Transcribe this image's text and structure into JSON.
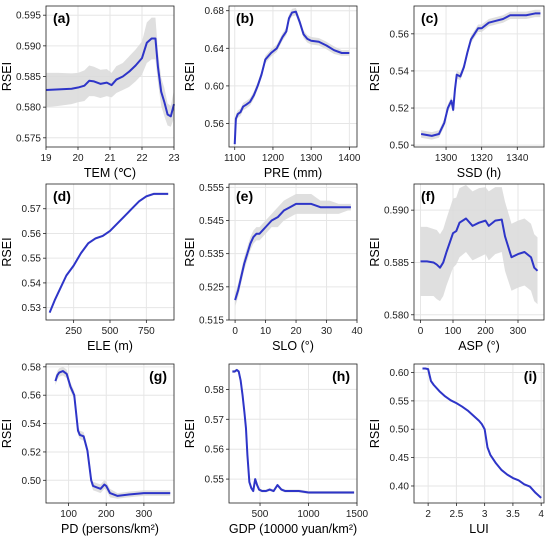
{
  "colors": {
    "line": "#2e35c8",
    "band": "#d9d9d9",
    "grid": "#e6e6e6",
    "frame": "#222222",
    "text": "#222222"
  },
  "chart_data": [
    {
      "panel": "(a)",
      "type": "line",
      "xlabel": "TEM (℃)",
      "ylabel": "RSEI",
      "xlim": [
        19,
        23
      ],
      "ylim": [
        0.5735,
        0.5965
      ],
      "xticks": [
        19,
        20,
        21,
        22,
        23
      ],
      "yticks": [
        0.575,
        0.58,
        0.585,
        0.59,
        0.595
      ],
      "ytick_labels": [
        "0.575",
        "0.580",
        "0.585",
        "0.590",
        "0.595"
      ],
      "grid": true,
      "band": true,
      "x": [
        19.0,
        19.4,
        19.8,
        20.0,
        20.2,
        20.35,
        20.5,
        20.7,
        20.9,
        21.05,
        21.2,
        21.4,
        21.6,
        21.8,
        22.0,
        22.15,
        22.3,
        22.42,
        22.5,
        22.6,
        22.7,
        22.8,
        22.9,
        23.0
      ],
      "y": [
        0.5828,
        0.5829,
        0.583,
        0.5832,
        0.5835,
        0.5843,
        0.5842,
        0.5838,
        0.584,
        0.5836,
        0.5845,
        0.585,
        0.5858,
        0.5868,
        0.588,
        0.5905,
        0.5912,
        0.5912,
        0.5865,
        0.5825,
        0.5808,
        0.5788,
        0.5785,
        0.5805
      ],
      "band_lower": [
        0.58,
        0.5802,
        0.5805,
        0.5808,
        0.581,
        0.5818,
        0.5818,
        0.5815,
        0.5818,
        0.5816,
        0.5823,
        0.5828,
        0.5833,
        0.5842,
        0.5853,
        0.5872,
        0.5878,
        0.5878,
        0.584,
        0.5802,
        0.5785,
        0.577,
        0.5768,
        0.5782
      ],
      "band_upper": [
        0.5856,
        0.5856,
        0.5855,
        0.5856,
        0.586,
        0.5868,
        0.5866,
        0.5861,
        0.5862,
        0.5856,
        0.5867,
        0.5872,
        0.5883,
        0.5894,
        0.5907,
        0.5938,
        0.5946,
        0.5946,
        0.589,
        0.5848,
        0.5831,
        0.5806,
        0.5802,
        0.5828
      ]
    },
    {
      "panel": "(b)",
      "type": "line",
      "xlabel": "PRE (mm)",
      "ylabel": "RSEI",
      "xlim": [
        1085,
        1420
      ],
      "ylim": [
        0.535,
        0.685
      ],
      "xticks": [
        1100,
        1200,
        1300,
        1400
      ],
      "yticks": [
        0.56,
        0.6,
        0.64,
        0.68
      ],
      "ytick_labels": [
        "0.56",
        "0.60",
        "0.64",
        "0.68"
      ],
      "grid": true,
      "band": true,
      "x": [
        1100,
        1103,
        1108,
        1115,
        1122,
        1130,
        1140,
        1150,
        1160,
        1170,
        1180,
        1195,
        1210,
        1225,
        1235,
        1242,
        1250,
        1260,
        1270,
        1280,
        1290,
        1300,
        1320,
        1340,
        1360,
        1380,
        1400
      ],
      "y": [
        0.538,
        0.565,
        0.57,
        0.572,
        0.578,
        0.58,
        0.583,
        0.59,
        0.6,
        0.612,
        0.628,
        0.635,
        0.64,
        0.652,
        0.658,
        0.672,
        0.678,
        0.679,
        0.668,
        0.655,
        0.65,
        0.648,
        0.647,
        0.643,
        0.638,
        0.635,
        0.635
      ],
      "band_lower": [
        0.535,
        0.56,
        0.566,
        0.568,
        0.574,
        0.576,
        0.579,
        0.586,
        0.596,
        0.608,
        0.624,
        0.631,
        0.636,
        0.648,
        0.654,
        0.668,
        0.674,
        0.675,
        0.664,
        0.651,
        0.646,
        0.644,
        0.643,
        0.639,
        0.634,
        0.632,
        0.632
      ],
      "band_upper": [
        0.541,
        0.57,
        0.574,
        0.576,
        0.582,
        0.584,
        0.587,
        0.594,
        0.604,
        0.616,
        0.632,
        0.639,
        0.644,
        0.656,
        0.662,
        0.676,
        0.682,
        0.683,
        0.672,
        0.659,
        0.654,
        0.652,
        0.651,
        0.647,
        0.642,
        0.638,
        0.638
      ]
    },
    {
      "panel": "(c)",
      "type": "line",
      "xlabel": "SSD (h)",
      "ylabel": "RSEI",
      "xlim": [
        1282,
        1355
      ],
      "ylim": [
        0.499,
        0.575
      ],
      "xticks": [
        1300,
        1320,
        1340
      ],
      "yticks": [
        0.5,
        0.52,
        0.54,
        0.56
      ],
      "ytick_labels": [
        "0.50",
        "0.52",
        "0.54",
        "0.56"
      ],
      "grid": true,
      "band": true,
      "x": [
        1286,
        1292,
        1296,
        1299,
        1301,
        1303,
        1304,
        1305,
        1306,
        1308,
        1310,
        1312,
        1314,
        1316,
        1318,
        1320,
        1324,
        1328,
        1332,
        1336,
        1340,
        1345,
        1350,
        1353
      ],
      "y": [
        0.506,
        0.505,
        0.506,
        0.512,
        0.52,
        0.524,
        0.519,
        0.53,
        0.538,
        0.537,
        0.542,
        0.55,
        0.557,
        0.56,
        0.563,
        0.563,
        0.566,
        0.567,
        0.568,
        0.57,
        0.57,
        0.57,
        0.571,
        0.571
      ],
      "band_lower": [
        0.504,
        0.503,
        0.504,
        0.51,
        0.518,
        0.522,
        0.517,
        0.528,
        0.536,
        0.535,
        0.54,
        0.548,
        0.555,
        0.558,
        0.561,
        0.561,
        0.564,
        0.565,
        0.566,
        0.568,
        0.568,
        0.568,
        0.569,
        0.569
      ],
      "band_upper": [
        0.508,
        0.507,
        0.508,
        0.514,
        0.522,
        0.526,
        0.521,
        0.532,
        0.54,
        0.539,
        0.544,
        0.552,
        0.559,
        0.562,
        0.565,
        0.565,
        0.568,
        0.569,
        0.57,
        0.572,
        0.572,
        0.572,
        0.573,
        0.573
      ]
    },
    {
      "panel": "(d)",
      "type": "line",
      "xlabel": "ELE (m)",
      "ylabel": "RSEI",
      "xlim": [
        60,
        940
      ],
      "ylim": [
        0.525,
        0.58
      ],
      "xticks": [
        250,
        500,
        750
      ],
      "yticks": [
        0.53,
        0.54,
        0.55,
        0.56,
        0.57
      ],
      "ytick_labels": [
        "0.53",
        "0.54",
        "0.55",
        "0.56",
        "0.57"
      ],
      "grid": true,
      "band": true,
      "x": [
        85,
        120,
        160,
        200,
        250,
        300,
        350,
        400,
        450,
        500,
        550,
        600,
        650,
        700,
        750,
        800,
        850,
        900
      ],
      "y": [
        0.528,
        0.533,
        0.538,
        0.543,
        0.547,
        0.552,
        0.556,
        0.558,
        0.559,
        0.561,
        0.564,
        0.567,
        0.57,
        0.573,
        0.575,
        0.576,
        0.576,
        0.576
      ],
      "band_lower": [
        0.5275,
        0.5325,
        0.5375,
        0.5425,
        0.5465,
        0.5515,
        0.5555,
        0.5575,
        0.5585,
        0.5605,
        0.5635,
        0.5665,
        0.5695,
        0.5725,
        0.5745,
        0.5755,
        0.5755,
        0.5755
      ],
      "band_upper": [
        0.5285,
        0.5335,
        0.5385,
        0.5435,
        0.5475,
        0.5525,
        0.5565,
        0.5585,
        0.5595,
        0.5615,
        0.5645,
        0.5675,
        0.5705,
        0.5735,
        0.5755,
        0.5765,
        0.5765,
        0.5765
      ]
    },
    {
      "panel": "(e)",
      "type": "line",
      "xlabel": "SLO (°)",
      "ylabel": "RSEI",
      "xlim": [
        -2,
        40
      ],
      "ylim": [
        0.515,
        0.556
      ],
      "xticks": [
        0,
        10,
        20,
        30,
        40
      ],
      "yticks": [
        0.515,
        0.525,
        0.535,
        0.545,
        0.555
      ],
      "ytick_labels": [
        "0.515",
        "0.525",
        "0.535",
        "0.545",
        "0.555"
      ],
      "grid": true,
      "band": true,
      "x": [
        0,
        1,
        2,
        3,
        4,
        5,
        6,
        7,
        8,
        9,
        10,
        12,
        14,
        16,
        18,
        20,
        22,
        25,
        28,
        31,
        34,
        37,
        38
      ],
      "y": [
        0.521,
        0.524,
        0.528,
        0.532,
        0.535,
        0.538,
        0.54,
        0.541,
        0.541,
        0.542,
        0.543,
        0.545,
        0.546,
        0.548,
        0.549,
        0.55,
        0.55,
        0.55,
        0.549,
        0.549,
        0.549,
        0.549,
        0.549
      ],
      "band_lower": [
        0.519,
        0.522,
        0.526,
        0.53,
        0.533,
        0.536,
        0.538,
        0.539,
        0.539,
        0.54,
        0.541,
        0.543,
        0.543,
        0.545,
        0.546,
        0.547,
        0.547,
        0.547,
        0.547,
        0.547,
        0.547,
        0.548,
        0.548
      ],
      "band_upper": [
        0.523,
        0.526,
        0.53,
        0.534,
        0.537,
        0.54,
        0.542,
        0.543,
        0.543,
        0.544,
        0.545,
        0.547,
        0.549,
        0.551,
        0.552,
        0.553,
        0.553,
        0.553,
        0.551,
        0.551,
        0.55,
        0.55,
        0.55
      ]
    },
    {
      "panel": "(f)",
      "type": "line",
      "xlabel": "ASP (°)",
      "ylabel": "RSEI",
      "xlim": [
        -20,
        380
      ],
      "ylim": [
        0.5795,
        0.5925
      ],
      "xticks": [
        0,
        100,
        200,
        300
      ],
      "yticks": [
        0.58,
        0.585,
        0.59
      ],
      "ytick_labels": [
        "0.580",
        "0.585",
        "0.590"
      ],
      "grid": true,
      "band": true,
      "x": [
        0,
        20,
        40,
        50,
        60,
        70,
        80,
        100,
        110,
        120,
        140,
        160,
        180,
        200,
        210,
        230,
        250,
        260,
        280,
        300,
        320,
        340,
        350,
        360
      ],
      "y": [
        0.5851,
        0.5851,
        0.585,
        0.5848,
        0.5845,
        0.585,
        0.586,
        0.5878,
        0.588,
        0.5888,
        0.5892,
        0.5885,
        0.5888,
        0.589,
        0.5885,
        0.589,
        0.5891,
        0.5875,
        0.5855,
        0.5858,
        0.586,
        0.5855,
        0.5845,
        0.5842
      ],
      "band_lower": [
        0.5818,
        0.5818,
        0.5818,
        0.5815,
        0.5813,
        0.5818,
        0.5828,
        0.5845,
        0.5848,
        0.5855,
        0.586,
        0.5852,
        0.5855,
        0.5858,
        0.5852,
        0.5858,
        0.586,
        0.5842,
        0.5823,
        0.5826,
        0.5828,
        0.5823,
        0.5813,
        0.581
      ],
      "band_upper": [
        0.5884,
        0.5884,
        0.5882,
        0.5881,
        0.5877,
        0.5882,
        0.5892,
        0.5911,
        0.5912,
        0.5921,
        0.5924,
        0.5918,
        0.5921,
        0.5922,
        0.5918,
        0.5922,
        0.5922,
        0.5908,
        0.5887,
        0.589,
        0.5892,
        0.5887,
        0.5877,
        0.5874
      ]
    },
    {
      "panel": "(g)",
      "type": "line",
      "xlabel": "PD (persons/km²)",
      "ylabel": "RSEI",
      "xlim": [
        40,
        380
      ],
      "ylim": [
        0.484,
        0.582
      ],
      "xticks": [
        100,
        200,
        300
      ],
      "yticks": [
        0.5,
        0.52,
        0.54,
        0.56,
        0.58
      ],
      "ytick_labels": [
        "0.50",
        "0.52",
        "0.54",
        "0.56",
        "0.58"
      ],
      "grid": true,
      "band": true,
      "x": [
        65,
        70,
        75,
        85,
        95,
        105,
        115,
        125,
        130,
        140,
        150,
        160,
        165,
        175,
        185,
        195,
        200,
        210,
        230,
        260,
        300,
        340,
        370
      ],
      "y": [
        0.57,
        0.574,
        0.576,
        0.577,
        0.575,
        0.566,
        0.56,
        0.535,
        0.532,
        0.531,
        0.521,
        0.5,
        0.496,
        0.495,
        0.494,
        0.497,
        0.496,
        0.491,
        0.489,
        0.49,
        0.491,
        0.491,
        0.491
      ],
      "band_lower": [
        0.567,
        0.571,
        0.573,
        0.574,
        0.572,
        0.563,
        0.557,
        0.532,
        0.529,
        0.528,
        0.518,
        0.497,
        0.493,
        0.492,
        0.491,
        0.494,
        0.493,
        0.488,
        0.487,
        0.488,
        0.489,
        0.489,
        0.489
      ],
      "band_upper": [
        0.573,
        0.577,
        0.579,
        0.58,
        0.578,
        0.569,
        0.563,
        0.538,
        0.535,
        0.534,
        0.524,
        0.503,
        0.499,
        0.498,
        0.497,
        0.5,
        0.499,
        0.494,
        0.491,
        0.492,
        0.493,
        0.493,
        0.493
      ]
    },
    {
      "panel": "(h)",
      "type": "line",
      "xlabel": "GDP (10000 yuan/km²)",
      "ylabel": "RSEI",
      "xlim": [
        180,
        1500
      ],
      "ylim": [
        0.542,
        0.5885
      ],
      "xticks": [
        500,
        1000,
        1500
      ],
      "yticks": [
        0.55,
        0.56,
        0.57,
        0.58
      ],
      "ytick_labels": [
        "0.55",
        "0.56",
        "0.57",
        "0.58"
      ],
      "grid": true,
      "band": true,
      "x": [
        215,
        240,
        260,
        280,
        300,
        320,
        330,
        340,
        355,
        370,
        390,
        410,
        430,
        450,
        470,
        490,
        520,
        560,
        600,
        640,
        680,
        720,
        760,
        800,
        900,
        1000,
        1100,
        1200,
        1300,
        1400,
        1470
      ],
      "y": [
        0.586,
        0.586,
        0.5865,
        0.586,
        0.583,
        0.578,
        0.575,
        0.572,
        0.567,
        0.558,
        0.549,
        0.547,
        0.546,
        0.55,
        0.548,
        0.5465,
        0.546,
        0.546,
        0.5465,
        0.546,
        0.548,
        0.5465,
        0.546,
        0.546,
        0.546,
        0.5455,
        0.5455,
        0.5455,
        0.5455,
        0.5455,
        0.5455
      ],
      "band_lower": [
        0.5855,
        0.5855,
        0.586,
        0.5855,
        0.5825,
        0.5775,
        0.5745,
        0.5715,
        0.5665,
        0.5575,
        0.5485,
        0.5465,
        0.5455,
        0.5495,
        0.5475,
        0.546,
        0.5455,
        0.5455,
        0.546,
        0.5455,
        0.5475,
        0.546,
        0.5455,
        0.5455,
        0.5455,
        0.545,
        0.545,
        0.545,
        0.545,
        0.545,
        0.545
      ],
      "band_upper": [
        0.5865,
        0.5865,
        0.587,
        0.5865,
        0.5835,
        0.5785,
        0.5755,
        0.5725,
        0.5675,
        0.5585,
        0.5495,
        0.5475,
        0.5465,
        0.5505,
        0.5485,
        0.547,
        0.5465,
        0.5465,
        0.547,
        0.5465,
        0.5485,
        0.547,
        0.5465,
        0.5465,
        0.5465,
        0.546,
        0.546,
        0.546,
        0.546,
        0.546,
        0.546
      ]
    },
    {
      "panel": "(i)",
      "type": "line",
      "xlabel": "LUI",
      "ylabel": "RSEI",
      "xlim": [
        1.75,
        4.05
      ],
      "ylim": [
        0.37,
        0.615
      ],
      "xticks": [
        2.0,
        2.5,
        3.0,
        3.5,
        4.0
      ],
      "yticks": [
        0.4,
        0.45,
        0.5,
        0.55,
        0.6
      ],
      "ytick_labels": [
        "0.40",
        "0.45",
        "0.50",
        "0.55",
        "0.60"
      ],
      "grid": true,
      "band": false,
      "x": [
        1.9,
        1.95,
        2.0,
        2.05,
        2.1,
        2.2,
        2.3,
        2.4,
        2.5,
        2.6,
        2.7,
        2.8,
        2.9,
        2.95,
        3.0,
        3.05,
        3.1,
        3.2,
        3.3,
        3.4,
        3.5,
        3.6,
        3.7,
        3.8,
        3.9,
        4.0
      ],
      "y": [
        0.607,
        0.607,
        0.606,
        0.585,
        0.578,
        0.567,
        0.558,
        0.551,
        0.546,
        0.54,
        0.533,
        0.524,
        0.515,
        0.509,
        0.5,
        0.468,
        0.455,
        0.44,
        0.428,
        0.42,
        0.414,
        0.41,
        0.403,
        0.399,
        0.388,
        0.379
      ]
    }
  ]
}
